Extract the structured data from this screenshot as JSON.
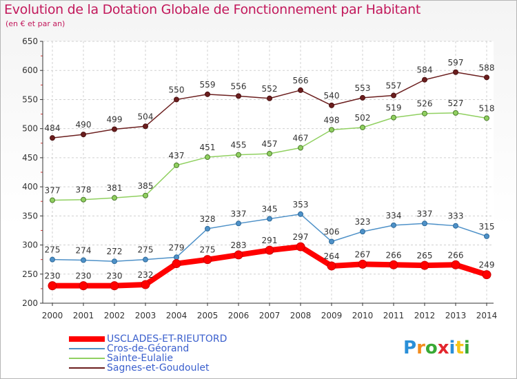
{
  "chart_data": {
    "type": "line",
    "title": "Evolution de la Dotation Globale de Fonctionnement par Habitant",
    "subtitle": "(en € et par an)",
    "xlabel": "",
    "ylabel": "",
    "x": [
      "2000",
      "2001",
      "2002",
      "2003",
      "2004",
      "2005",
      "2006",
      "2007",
      "2008",
      "2009",
      "2010",
      "2011",
      "2012",
      "2013",
      "2014"
    ],
    "ylim": [
      200,
      650
    ],
    "yticks": [
      200,
      250,
      300,
      350,
      400,
      450,
      500,
      550,
      600,
      650
    ],
    "grid": true,
    "legend_position": "bottom-left",
    "series": [
      {
        "name": "USCLADES-ET-RIEUTORD",
        "color": "#ff0000",
        "bold": true,
        "values": [
          230,
          230,
          230,
          232,
          268,
          275,
          283,
          291,
          297,
          264,
          267,
          266,
          265,
          266,
          249
        ],
        "labels": [
          "230",
          "230",
          "230",
          "232",
          "",
          "275",
          "283",
          "291",
          "297",
          "264",
          "267",
          "266",
          "265",
          "266",
          "249"
        ]
      },
      {
        "name": "Cros-de-Géorand",
        "color": "#4e91c8",
        "values": [
          275,
          274,
          272,
          275,
          279,
          328,
          337,
          345,
          353,
          306,
          323,
          334,
          337,
          333,
          315
        ],
        "labels": [
          "275",
          "274",
          "272",
          "275",
          "279",
          "328",
          "337",
          "345",
          "353",
          "306",
          "323",
          "334",
          "337",
          "333",
          "315"
        ]
      },
      {
        "name": "Sainte-Eulalie",
        "color": "#90d060",
        "values": [
          377,
          378,
          381,
          385,
          437,
          451,
          455,
          457,
          467,
          498,
          502,
          519,
          526,
          527,
          518
        ],
        "labels": [
          "377",
          "378",
          "381",
          "385",
          "437",
          "451",
          "455",
          "457",
          "467",
          "498",
          "502",
          "519",
          "526",
          "527",
          "518"
        ]
      },
      {
        "name": "Sagnes-et-Goudoulet",
        "color": "#6b1e1e",
        "values": [
          484,
          490,
          499,
          504,
          550,
          559,
          556,
          552,
          566,
          540,
          553,
          557,
          584,
          597,
          588
        ],
        "labels": [
          "484",
          "490",
          "499",
          "504",
          "550",
          "559",
          "556",
          "552",
          "566",
          "540",
          "553",
          "557",
          "584",
          "597",
          "588"
        ]
      }
    ],
    "watermark": "Proxiti"
  },
  "colors": {
    "title": "#c2185b",
    "grid": "#cccccc",
    "axis": "#333333"
  }
}
